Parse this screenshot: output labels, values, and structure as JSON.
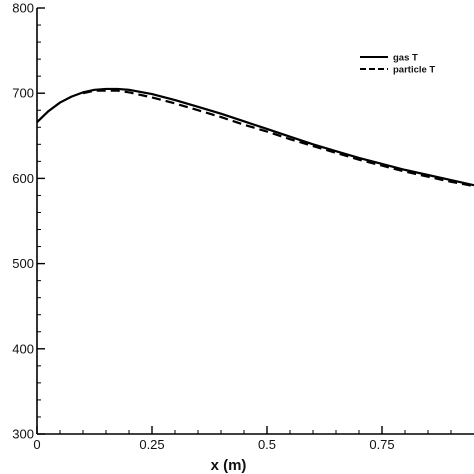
{
  "chart_data": {
    "type": "line",
    "title": "",
    "xlabel": "x (m)",
    "ylabel": "",
    "xlim": [
      0,
      0.95
    ],
    "ylim": [
      300,
      800
    ],
    "xticks": [
      0,
      0.25,
      0.5,
      0.75
    ],
    "xtick_labels": [
      "0",
      "0.25",
      "0.5",
      "0.75"
    ],
    "yticks": [
      300,
      400,
      500,
      600,
      700,
      800
    ],
    "ytick_labels": [
      "300",
      "400",
      "500",
      "600",
      "700",
      "800"
    ],
    "grid": false,
    "legend_position": "top-right",
    "colors": {
      "line": "#000000",
      "axis": "#000000",
      "background": "#ffffff"
    },
    "series": [
      {
        "name": "gas T",
        "style": "solid",
        "x": [
          0,
          0.025,
          0.05,
          0.075,
          0.1,
          0.125,
          0.15,
          0.175,
          0.2,
          0.25,
          0.3,
          0.35,
          0.4,
          0.45,
          0.5,
          0.55,
          0.6,
          0.65,
          0.7,
          0.75,
          0.8,
          0.85,
          0.9,
          0.95
        ],
        "y": [
          666,
          679,
          689,
          696,
          701,
          704,
          705,
          705,
          704,
          699,
          692,
          684,
          676,
          667,
          658,
          649,
          640,
          632,
          624,
          617,
          610,
          604,
          598,
          592
        ]
      },
      {
        "name": "particle T",
        "style": "dashed",
        "x": [
          0.1,
          0.125,
          0.15,
          0.175,
          0.2,
          0.25,
          0.3,
          0.35,
          0.4,
          0.45,
          0.5,
          0.55,
          0.6,
          0.65,
          0.7,
          0.75,
          0.8,
          0.85,
          0.9,
          0.95
        ],
        "y": [
          700,
          703,
          703,
          703,
          701,
          695,
          688,
          680,
          672,
          663,
          655,
          646,
          638,
          630,
          622,
          615,
          608,
          602,
          596,
          591
        ]
      }
    ]
  }
}
